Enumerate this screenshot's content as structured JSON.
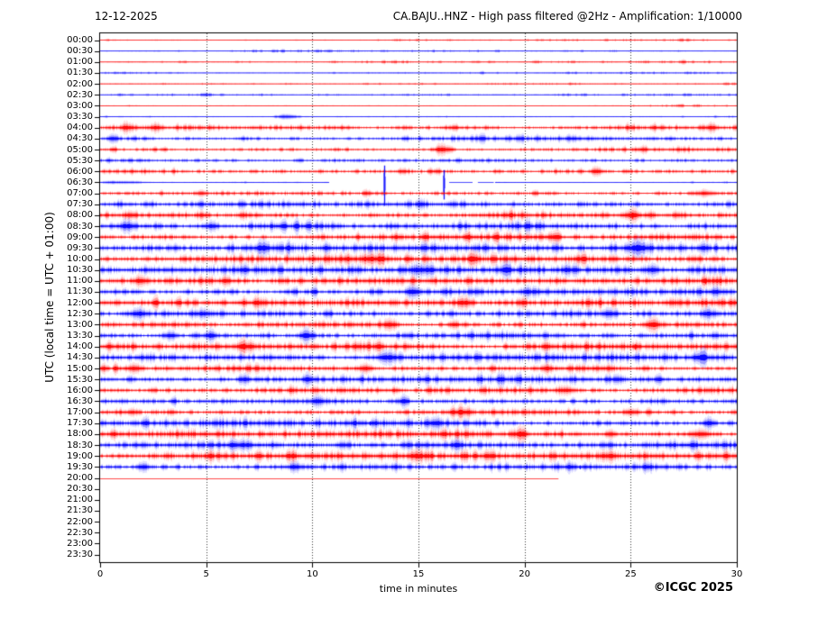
{
  "header": {
    "date": "12-12-2025",
    "title": "CA.BAJU..HNZ - High pass filtered @2Hz - Amplification: 1/10000"
  },
  "footer": {
    "copyright": "©ICGC 2025"
  },
  "axes": {
    "y_label": "UTC (local time = UTC + 01:00)",
    "x_label": "time in minutes"
  },
  "colors": {
    "trace_red": "#ff0000",
    "trace_blue": "#0000ff",
    "axis": "#000000",
    "grid": "#444444",
    "text": "#000000",
    "background": "#ffffff"
  },
  "chart_data": {
    "type": "line",
    "subtype": "helicorder",
    "station": "CA.BAJU..HNZ",
    "filter": "High pass filtered @2Hz",
    "amplification": "1/10000",
    "date": "12-12-2025",
    "xlabel": "time in minutes",
    "x_range": [
      0,
      30
    ],
    "x_ticks": [
      0,
      5,
      10,
      15,
      20,
      25,
      30
    ],
    "grid_minutes": [
      5,
      10,
      15,
      20,
      25
    ],
    "row_duration_min": 30,
    "observations": [
      "06:30 trace: quiet flat 0-10.8 min, data gap, large spikes near 13.4 and 16.2 min, dashed then flat to 30",
      "08:00 trace: sharp local event spike near 25.0 min",
      "20:00 trace: flat line ending near 21.6 min",
      "rows 20:30 through 23:30 contain no data"
    ],
    "rows": [
      {
        "label": "00:00",
        "color": "red",
        "amp": 0.45
      },
      {
        "label": "00:30",
        "color": "blue",
        "amp": 0.5
      },
      {
        "label": "01:00",
        "color": "red",
        "amp": 0.55
      },
      {
        "label": "01:30",
        "color": "blue",
        "amp": 0.55
      },
      {
        "label": "02:00",
        "color": "red",
        "amp": 0.5
      },
      {
        "label": "02:30",
        "color": "blue",
        "amp": 0.5
      },
      {
        "label": "03:00",
        "color": "red",
        "amp": 0.4
      },
      {
        "label": "03:30",
        "color": "blue",
        "amp": 0.5,
        "events": [
          {
            "t": 8.8,
            "amp": 1.2,
            "w": 0.5
          }
        ]
      },
      {
        "label": "04:00",
        "color": "red",
        "amp": 1.25,
        "events": [
          {
            "t": 1.3,
            "amp": 1.5,
            "w": 0.3
          },
          {
            "t": 2.6,
            "amp": 1.2,
            "w": 0.3
          },
          {
            "t": 28.8,
            "amp": 1.5,
            "w": 0.3
          }
        ]
      },
      {
        "label": "04:30",
        "color": "blue",
        "amp": 1.15,
        "events": [
          {
            "t": 0.5,
            "amp": 1.5,
            "w": 0.2
          }
        ]
      },
      {
        "label": "05:00",
        "color": "red",
        "amp": 1.25,
        "events": [
          {
            "t": 16.1,
            "amp": 2.5,
            "w": 0.3
          }
        ]
      },
      {
        "label": "05:30",
        "color": "blue",
        "amp": 1.1
      },
      {
        "label": "06:00",
        "color": "red",
        "amp": 1.5,
        "events": [
          {
            "t": 23.4,
            "amp": 2.0,
            "w": 0.25
          }
        ]
      },
      {
        "label": "06:30",
        "color": "blue",
        "amp": 0.5,
        "segments": [
          [
            0,
            10.75,
            0.5
          ],
          [
            16.45,
            17.55,
            0.2
          ],
          [
            17.8,
            18.55,
            0.2
          ],
          [
            18.6,
            30,
            0.35
          ]
        ],
        "events": [
          {
            "t": 1.2,
            "amp": 0.6,
            "w": 1.2
          },
          {
            "t": 13.37,
            "amp": 26,
            "w": 0.07,
            "type": "spike"
          },
          {
            "t": 16.17,
            "amp": 19,
            "w": 0.06,
            "type": "spike"
          }
        ]
      },
      {
        "label": "07:00",
        "color": "red",
        "amp": 1.0,
        "events": [
          {
            "t": 28.5,
            "amp": 1.2,
            "w": 0.6
          }
        ]
      },
      {
        "label": "07:30",
        "color": "blue",
        "amp": 1.6
      },
      {
        "label": "08:00",
        "color": "red",
        "amp": 1.8,
        "events": [
          {
            "t": 25.05,
            "amp": 4,
            "w": 0.1,
            "type": "spike"
          },
          {
            "t": 25.05,
            "amp": 2.5,
            "w": 0.35
          },
          {
            "t": 1.4,
            "amp": 1.5,
            "w": 0.3
          }
        ]
      },
      {
        "label": "08:30",
        "color": "blue",
        "amp": 1.7,
        "events": [
          {
            "t": 1.3,
            "amp": 2,
            "w": 0.4
          },
          {
            "t": 5.2,
            "amp": 1.5,
            "w": 0.3
          }
        ]
      },
      {
        "label": "09:00",
        "color": "red",
        "amp": 1.75,
        "events": [
          {
            "t": 21.3,
            "amp": 1.5,
            "w": 0.3
          }
        ]
      },
      {
        "label": "09:30",
        "color": "blue",
        "amp": 1.8,
        "events": [
          {
            "t": 7.7,
            "amp": 3,
            "w": 0.25
          },
          {
            "t": 25.5,
            "amp": 2.2,
            "w": 0.3
          }
        ]
      },
      {
        "label": "10:00",
        "color": "red",
        "amp": 1.8,
        "events": [
          {
            "t": 13.0,
            "amp": 1.5,
            "w": 0.4
          }
        ]
      },
      {
        "label": "10:30",
        "color": "blue",
        "amp": 1.8,
        "events": [
          {
            "t": 15.0,
            "amp": 2,
            "w": 0.4
          },
          {
            "t": 26.0,
            "amp": 2,
            "w": 0.3
          }
        ]
      },
      {
        "label": "11:00",
        "color": "red",
        "amp": 1.7,
        "events": [
          {
            "t": 1.9,
            "amp": 1.8,
            "w": 0.25
          },
          {
            "t": 28.5,
            "amp": 3.5,
            "w": 0.1,
            "type": "spike"
          }
        ]
      },
      {
        "label": "11:30",
        "color": "blue",
        "amp": 1.8,
        "events": [
          {
            "t": 14.8,
            "amp": 2,
            "w": 0.3
          },
          {
            "t": 29.0,
            "amp": 2,
            "w": 0.2
          }
        ]
      },
      {
        "label": "12:00",
        "color": "red",
        "amp": 1.8,
        "events": [
          {
            "t": 17.2,
            "amp": 2,
            "w": 0.3
          }
        ]
      },
      {
        "label": "12:30",
        "color": "blue",
        "amp": 1.8,
        "events": [
          {
            "t": 1.8,
            "amp": 2.2,
            "w": 0.3
          },
          {
            "t": 24.0,
            "amp": 2,
            "w": 0.3
          },
          {
            "t": 28.6,
            "amp": 2,
            "w": 0.25
          }
        ]
      },
      {
        "label": "13:00",
        "color": "red",
        "amp": 1.9,
        "events": [
          {
            "t": 13.6,
            "amp": 2,
            "w": 0.3
          },
          {
            "t": 26.0,
            "amp": 2.5,
            "w": 0.3
          }
        ]
      },
      {
        "label": "13:30",
        "color": "blue",
        "amp": 1.9,
        "events": [
          {
            "t": 3.3,
            "amp": 2,
            "w": 0.3
          },
          {
            "t": 5.2,
            "amp": 2,
            "w": 0.25
          },
          {
            "t": 9.7,
            "amp": 2.5,
            "w": 0.3
          }
        ]
      },
      {
        "label": "14:00",
        "color": "red",
        "amp": 1.85,
        "events": [
          {
            "t": 7.0,
            "amp": 1.5,
            "w": 0.3
          },
          {
            "t": 25.2,
            "amp": 3.5,
            "w": 0.1,
            "type": "spike"
          }
        ]
      },
      {
        "label": "14:30",
        "color": "blue",
        "amp": 1.8,
        "events": [
          {
            "t": 13.4,
            "amp": 2.2,
            "w": 0.4
          },
          {
            "t": 28.2,
            "amp": 2,
            "w": 0.3
          }
        ]
      },
      {
        "label": "15:00",
        "color": "red",
        "amp": 1.85,
        "events": [
          {
            "t": 1.6,
            "amp": 2,
            "w": 0.3
          },
          {
            "t": 12.5,
            "amp": 1.8,
            "w": 0.3
          }
        ]
      },
      {
        "label": "15:30",
        "color": "blue",
        "amp": 1.8,
        "events": [
          {
            "t": 6.8,
            "amp": 2,
            "w": 0.3
          },
          {
            "t": 9.8,
            "amp": 2,
            "w": 0.25
          }
        ]
      },
      {
        "label": "16:00",
        "color": "red",
        "amp": 1.8,
        "events": [
          {
            "t": 22.0,
            "amp": 1.5,
            "w": 0.4
          }
        ]
      },
      {
        "label": "16:30",
        "color": "blue",
        "amp": 1.8,
        "events": [
          {
            "t": 10.2,
            "amp": 2,
            "w": 0.3
          },
          {
            "t": 14.3,
            "amp": 3,
            "w": 0.2
          }
        ]
      },
      {
        "label": "17:00",
        "color": "red",
        "amp": 1.8,
        "events": [
          {
            "t": 17.0,
            "amp": 1.6,
            "w": 0.4
          },
          {
            "t": 25.0,
            "amp": 1.5,
            "w": 0.3
          }
        ]
      },
      {
        "label": "17:30",
        "color": "blue",
        "amp": 1.8,
        "events": [
          {
            "t": 12.7,
            "amp": 2.5,
            "w": 0.1,
            "type": "spike"
          },
          {
            "t": 15.8,
            "amp": 2,
            "w": 0.3
          },
          {
            "t": 28.7,
            "amp": 2.5,
            "w": 0.2
          }
        ]
      },
      {
        "label": "18:00",
        "color": "red",
        "amp": 1.85,
        "events": [
          {
            "t": 19.8,
            "amp": 2,
            "w": 0.3
          },
          {
            "t": 28.3,
            "amp": 2,
            "w": 0.4
          }
        ]
      },
      {
        "label": "18:30",
        "color": "blue",
        "amp": 1.8,
        "events": [
          {
            "t": 6.3,
            "amp": 2,
            "w": 0.3
          },
          {
            "t": 16.8,
            "amp": 2,
            "w": 0.3
          }
        ]
      },
      {
        "label": "19:00",
        "color": "red",
        "amp": 1.8,
        "events": [
          {
            "t": 14.9,
            "amp": 2.2,
            "w": 0.3
          },
          {
            "t": 24.0,
            "amp": 1.8,
            "w": 0.3
          }
        ]
      },
      {
        "label": "19:30",
        "color": "blue",
        "amp": 1.5,
        "events": [
          {
            "t": 2.0,
            "amp": 1.8,
            "w": 0.3
          },
          {
            "t": 9.2,
            "amp": 1.8,
            "w": 0.3
          },
          {
            "t": 22.6,
            "amp": 2.5,
            "w": 0.12,
            "type": "spike"
          }
        ]
      },
      {
        "label": "20:00",
        "color": "red",
        "amp": 0.12,
        "segments": [
          [
            0,
            21.6,
            0.12
          ]
        ]
      },
      {
        "label": "20:30",
        "color": "blue",
        "amp": 0,
        "segments": []
      },
      {
        "label": "21:00",
        "color": "red",
        "amp": 0,
        "segments": []
      },
      {
        "label": "21:30",
        "color": "blue",
        "amp": 0,
        "segments": []
      },
      {
        "label": "22:00",
        "color": "red",
        "amp": 0,
        "segments": []
      },
      {
        "label": "22:30",
        "color": "blue",
        "amp": 0,
        "segments": []
      },
      {
        "label": "23:00",
        "color": "red",
        "amp": 0,
        "segments": []
      },
      {
        "label": "23:30",
        "color": "blue",
        "amp": 0,
        "segments": []
      }
    ]
  }
}
